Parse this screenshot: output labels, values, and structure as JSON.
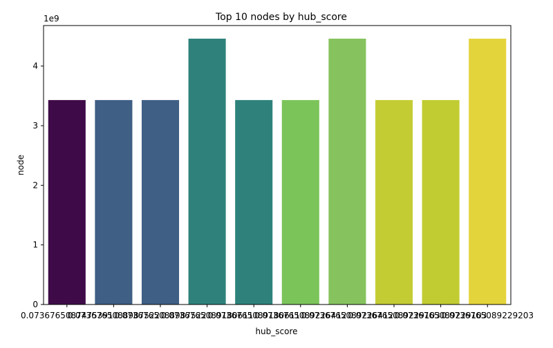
{
  "chart_data": {
    "type": "bar",
    "title": "Top 10 nodes by hub_score",
    "xlabel": "hub_score",
    "ylabel": "node",
    "y_offset_label": "1e9",
    "y_tick_labels": [
      "0",
      "1",
      "2",
      "3",
      "4"
    ],
    "y_ticks": [
      0,
      1,
      2,
      3,
      4
    ],
    "ylim": [
      0,
      4.68
    ],
    "categories": [
      "0.0736765087475391",
      "0.0736765088987522",
      "0.0736765088987522",
      "0.0736765089180611",
      "0.0736765089180611",
      "0.0736765089226412",
      "0.0736765089226412",
      "0.0736765089229103",
      "0.0736765089229103",
      "0.0736765089229203"
    ],
    "values": [
      3.43,
      3.43,
      3.43,
      4.46,
      3.43,
      3.43,
      4.46,
      3.43,
      3.43,
      4.46
    ],
    "colors": [
      "#3e0b48",
      "#3f5f85",
      "#3f5f85",
      "#2f827c",
      "#2f827c",
      "#7bc45a",
      "#86c35e",
      "#c4cc34",
      "#c1cc32",
      "#e4d43c"
    ],
    "grid": false,
    "legend": "none"
  }
}
